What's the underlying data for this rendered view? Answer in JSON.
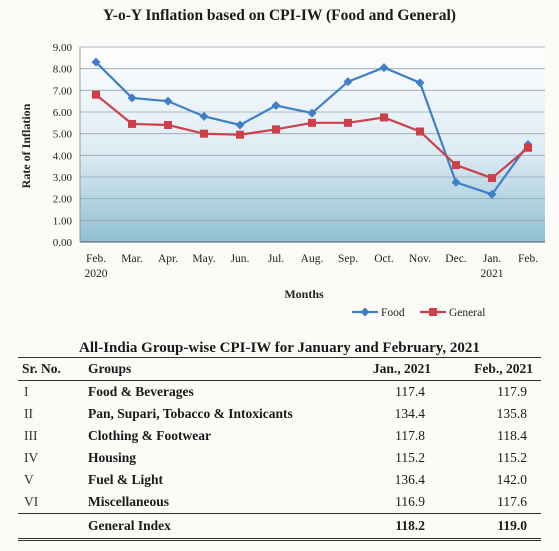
{
  "chart_data": {
    "type": "line",
    "title": "Y-o-Y Inflation based on CPI-IW (Food and General)",
    "ylabel": "Rate of Inflation",
    "xlabel": "Months",
    "ylim": [
      0,
      9
    ],
    "yticks": [
      "0.00",
      "1.00",
      "2.00",
      "3.00",
      "4.00",
      "5.00",
      "6.00",
      "7.00",
      "8.00",
      "9.00"
    ],
    "categories": [
      [
        "Feb.",
        "2020"
      ],
      [
        "Mar.",
        ""
      ],
      [
        "Apr.",
        ""
      ],
      [
        "May.",
        ""
      ],
      [
        "Jun.",
        ""
      ],
      [
        "Jul.",
        ""
      ],
      [
        "Aug.",
        ""
      ],
      [
        "Sep.",
        ""
      ],
      [
        "Oct.",
        ""
      ],
      [
        "Nov.",
        ""
      ],
      [
        "Dec.",
        ""
      ],
      [
        "Jan.",
        "2021"
      ],
      [
        "Feb.",
        ""
      ]
    ],
    "grid": true,
    "legend_position": "bottom-right",
    "series": [
      {
        "name": "Food",
        "color": "#3f7fc6",
        "marker": "diamond",
        "values": [
          8.3,
          6.65,
          6.5,
          5.8,
          5.4,
          6.3,
          5.95,
          7.4,
          8.05,
          7.35,
          2.75,
          2.2,
          4.5
        ]
      },
      {
        "name": "General",
        "color": "#cf3f4a",
        "marker": "square",
        "values": [
          6.8,
          5.45,
          5.4,
          5.0,
          4.95,
          5.2,
          5.5,
          5.5,
          5.75,
          5.1,
          3.55,
          2.95,
          4.35
        ]
      }
    ]
  },
  "table": {
    "title": "All-India Group-wise CPI-IW for January and February, 2021",
    "headers": [
      "Sr. No.",
      "Groups",
      "Jan., 2021",
      "Feb., 2021"
    ],
    "rows": [
      [
        "I",
        "Food & Beverages",
        "117.4",
        "117.9"
      ],
      [
        "II",
        "Pan, Supari, Tobacco & Intoxicants",
        "134.4",
        "135.8"
      ],
      [
        "III",
        "Clothing & Footwear",
        "117.8",
        "118.4"
      ],
      [
        "IV",
        "Housing",
        "115.2",
        "115.2"
      ],
      [
        "V",
        "Fuel & Light",
        "136.4",
        "142.0"
      ],
      [
        "VI",
        "Miscellaneous",
        "116.9",
        "117.6"
      ]
    ],
    "total": {
      "label": "General Index",
      "jan": "118.2",
      "feb": "119.0"
    }
  }
}
